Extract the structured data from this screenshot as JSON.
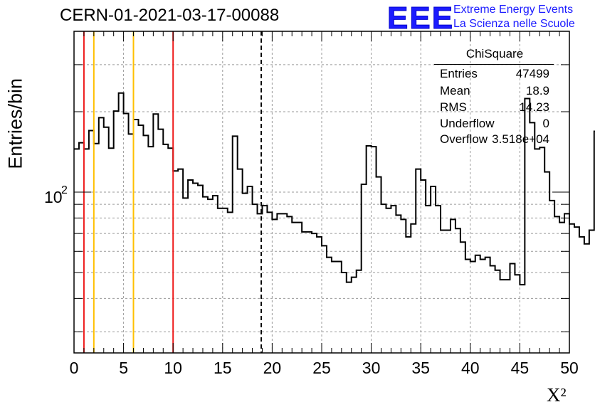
{
  "title": "CERN-01-2021-03-17-00088",
  "logo": {
    "mark": "EEE",
    "line1": "Extreme Energy Events",
    "line2": "La Scienza nelle Scuole"
  },
  "stats": {
    "title": "ChiSquare",
    "rows": [
      {
        "name": "Entries",
        "value": "47499"
      },
      {
        "name": "Mean",
        "value": "18.9"
      },
      {
        "name": "RMS",
        "value": "14.23"
      },
      {
        "name": "Underflow",
        "value": "0"
      },
      {
        "name": "Overflow",
        "value": "3.518e+04"
      }
    ]
  },
  "chart_data": {
    "type": "histogram",
    "title": "CERN-01-2021-03-17-00088",
    "xlabel": "X²",
    "ylabel": "Entries/bin",
    "xlim": [
      0,
      50
    ],
    "ylim": [
      25,
      400
    ],
    "log_y": true,
    "grid": true,
    "x_ticks": [
      "0",
      "5",
      "10",
      "15",
      "20",
      "25",
      "30",
      "35",
      "40",
      "45",
      "50"
    ],
    "y_tick_label": "10",
    "y_tick_exponent": "2",
    "bin_width": 0.5,
    "values": [
      145,
      153,
      145,
      170,
      152,
      190,
      175,
      146,
      201,
      235,
      197,
      165,
      187,
      178,
      163,
      148,
      196,
      172,
      151,
      146,
      120,
      122,
      95,
      111,
      108,
      106,
      96,
      94,
      97,
      87,
      87,
      84,
      162,
      122,
      99,
      105,
      90,
      83,
      89,
      84,
      79,
      83,
      83,
      81,
      77,
      77,
      71,
      71,
      70,
      68,
      63,
      57,
      55,
      55,
      50,
      46,
      48,
      51,
      107,
      149,
      148,
      114,
      90,
      87,
      89,
      82,
      79,
      68,
      76,
      122,
      111,
      89,
      105,
      89,
      72,
      72,
      79,
      73,
      65,
      56,
      55,
      58,
      56,
      57,
      53,
      51,
      47,
      47,
      54,
      49,
      45,
      224,
      182,
      145,
      147,
      119,
      93,
      81,
      77,
      83,
      76,
      74,
      68,
      64,
      72,
      169,
      105,
      99,
      86,
      91,
      67,
      63,
      60,
      48,
      44,
      43,
      48,
      67,
      50,
      41,
      43,
      132,
      130,
      81,
      56,
      59,
      73,
      105,
      56,
      62,
      52,
      62,
      76,
      51,
      48,
      76,
      83,
      95,
      76,
      48,
      54,
      52,
      48,
      46,
      41,
      38,
      46,
      55,
      59,
      77,
      80,
      77,
      69,
      49,
      43,
      48,
      55,
      58,
      53,
      44,
      47,
      42,
      41,
      40,
      43,
      43,
      45,
      49,
      56,
      53,
      47,
      46,
      47,
      37,
      34,
      36,
      31,
      32,
      33,
      39,
      38,
      33,
      31,
      33,
      32,
      30,
      30,
      31,
      29,
      41,
      44,
      47,
      49,
      51,
      49,
      51,
      53,
      56,
      53,
      40
    ],
    "reference_lines": [
      {
        "x": 1,
        "color": "#ee1c1c",
        "style": "solid"
      },
      {
        "x": 2,
        "color": "#ffc000",
        "style": "solid"
      },
      {
        "x": 6,
        "color": "#ffc000",
        "style": "solid"
      },
      {
        "x": 10,
        "color": "#ee1c1c",
        "style": "solid"
      },
      {
        "x": 18.9,
        "color": "#000000",
        "style": "dashed"
      }
    ]
  },
  "colors": {
    "logo": "#1b1bff",
    "hist": "#000000",
    "grid": "#9a9a9a"
  }
}
